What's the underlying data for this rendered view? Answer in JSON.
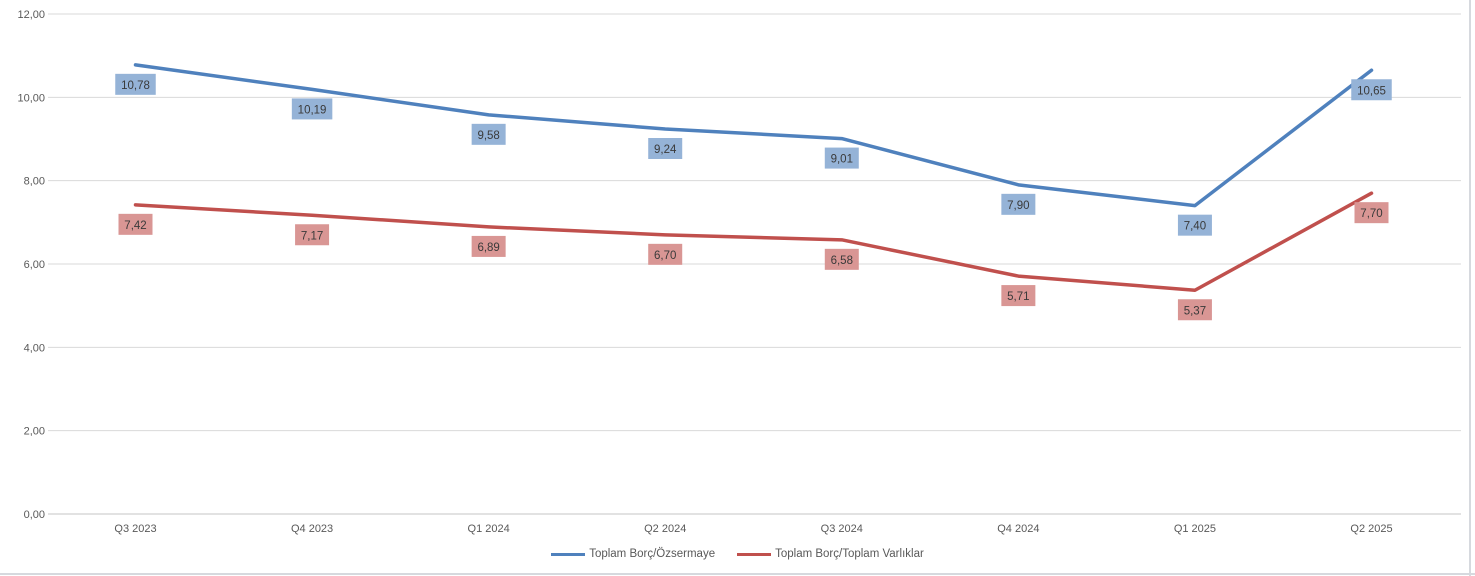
{
  "chart_data": {
    "type": "line",
    "title": "",
    "xlabel": "",
    "ylabel": "",
    "categories": [
      "Q3 2023",
      "Q4 2023",
      "Q1 2024",
      "Q2 2024",
      "Q3 2024",
      "Q4 2024",
      "Q1 2025",
      "Q2 2025"
    ],
    "series": [
      {
        "name": "Toplam Borç/Özsermaye",
        "values": [
          10.78,
          10.19,
          9.58,
          9.24,
          9.01,
          7.9,
          7.4,
          10.65
        ],
        "labels": [
          "10,78",
          "10,19",
          "9,58",
          "9,24",
          "9,01",
          "7,90",
          "7,40",
          "10,65"
        ],
        "color": "#4F81BD",
        "label_fill": "#95B3D7"
      },
      {
        "name": "Toplam Borç/Toplam Varlıklar",
        "values": [
          7.42,
          7.17,
          6.89,
          6.7,
          6.58,
          5.71,
          5.37,
          7.7
        ],
        "labels": [
          "7,42",
          "7,17",
          "6,89",
          "6,70",
          "6,58",
          "5,71",
          "5,37",
          "7,70"
        ],
        "color": "#C0504D",
        "label_fill": "#D99694"
      }
    ],
    "ylim": [
      0,
      12
    ],
    "y_ticks": {
      "values": [
        0,
        2,
        4,
        6,
        8,
        10,
        12
      ],
      "labels": [
        "0,00",
        "2,00",
        "4,00",
        "6,00",
        "8,00",
        "10,00",
        "12,00"
      ]
    },
    "grid": true,
    "legend_position": "bottom",
    "colors": {
      "gridline": "#D9D9D9",
      "axis_line": "#C6C6C6",
      "tick_text": "#595959",
      "data_label_text": "#3A3A3A"
    }
  }
}
